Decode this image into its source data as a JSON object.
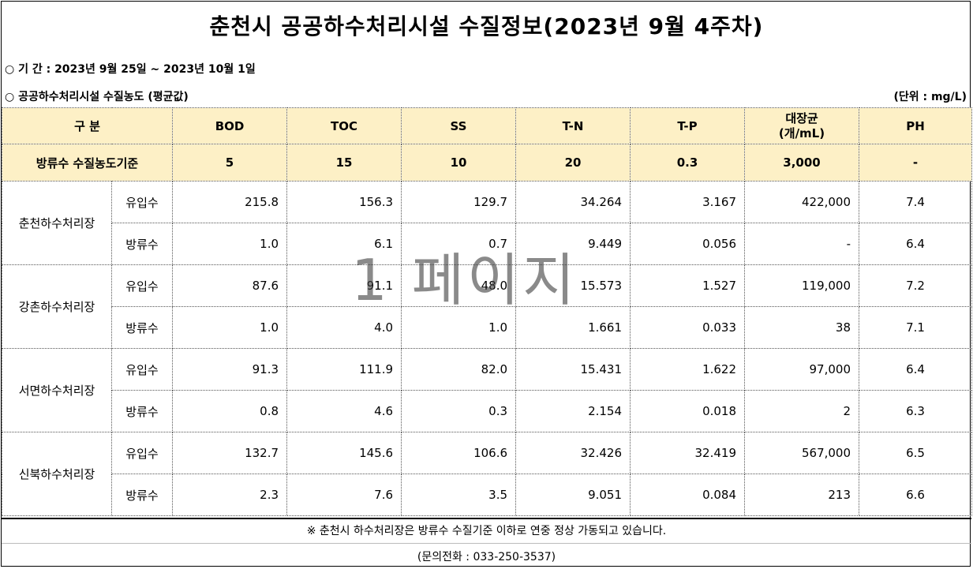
{
  "title": "춘천시 공공하수처리시설 수질정보(2023년 9월 4주차)",
  "period": "○ 기  간  :  2023년 9월 25일 ~ 2023년 10월 1일",
  "section": "○ 공공하수처리시설 수질농도 (평균값)",
  "unit": "(단위 : mg/L)",
  "table": {
    "header": {
      "category": "구  분",
      "cols": [
        "BOD",
        "TOC",
        "SS",
        "T-N",
        "T-P",
        "대장균\n(개/mL)",
        "PH"
      ]
    },
    "standard": {
      "label": "방류수 수질농도기준",
      "values": [
        "5",
        "15",
        "10",
        "20",
        "0.3",
        "3,000",
        "-"
      ]
    },
    "plants": [
      {
        "name": "춘천하수처리장",
        "rows": [
          {
            "type": "유입수",
            "values": [
              "215.8",
              "156.3",
              "129.7",
              "34.264",
              "3.167",
              "422,000",
              "7.4"
            ]
          },
          {
            "type": "방류수",
            "values": [
              "1.0",
              "6.1",
              "0.7",
              "9.449",
              "0.056",
              "-",
              "6.4"
            ]
          }
        ]
      },
      {
        "name": "강촌하수처리장",
        "rows": [
          {
            "type": "유입수",
            "values": [
              "87.6",
              "91.1",
              "48.0",
              "15.573",
              "1.527",
              "119,000",
              "7.2"
            ]
          },
          {
            "type": "방류수",
            "values": [
              "1.0",
              "4.0",
              "1.0",
              "1.661",
              "0.033",
              "38",
              "7.1"
            ]
          }
        ]
      },
      {
        "name": "서면하수처리장",
        "rows": [
          {
            "type": "유입수",
            "values": [
              "91.3",
              "111.9",
              "82.0",
              "15.431",
              "1.622",
              "97,000",
              "6.4"
            ]
          },
          {
            "type": "방류수",
            "values": [
              "0.8",
              "4.6",
              "0.3",
              "2.154",
              "0.018",
              "2",
              "6.3"
            ]
          }
        ]
      },
      {
        "name": "신북하수처리장",
        "rows": [
          {
            "type": "유입수",
            "values": [
              "132.7",
              "145.6",
              "106.6",
              "32.426",
              "32.419",
              "567,000",
              "6.5"
            ]
          },
          {
            "type": "방류수",
            "values": [
              "2.3",
              "7.6",
              "3.5",
              "9.051",
              "0.084",
              "213",
              "6.6"
            ]
          }
        ]
      }
    ]
  },
  "note": "※ 춘천시 하수처리장은 방류수 수질기준 이하로 연중 정상 가동되고 있습니다.",
  "contact": "(문의전화 : 033-250-3537)",
  "watermark": "1 페이지"
}
